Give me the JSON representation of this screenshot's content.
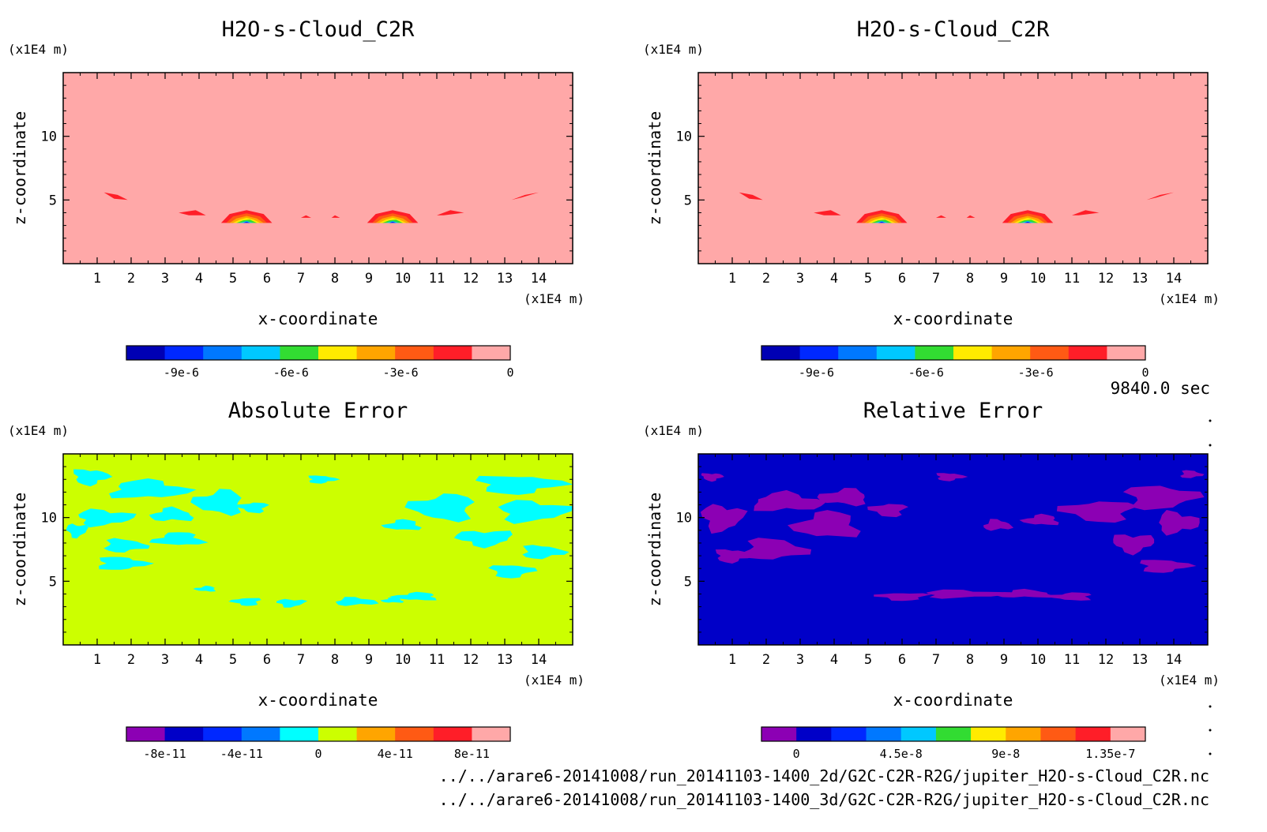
{
  "time_label": "9840.0 sec",
  "file_paths": [
    "../../arare6-20141008/run_20141103-1400_2d/G2C-C2R-R2G/jupiter_H2O-s-Cloud_C2R.nc",
    "../../arare6-20141008/run_20141103-1400_3d/G2C-C2R-R2G/jupiter_H2O-s-Cloud_C2R.nc"
  ],
  "colors": {
    "background_cloud": "#ffa8a8",
    "abs_background": "#ccff00",
    "abs_patch": "#00ffff",
    "rel_background": "#0000c8",
    "rel_patch": "#8c00b4"
  },
  "chart_data": [
    {
      "type": "heatmap",
      "title": "H2O-s-Cloud_C2R",
      "xlabel": "x-coordinate",
      "ylabel": "z-coordinate",
      "xunit": "(x1E4 m)",
      "yunit": "(x1E4 m)",
      "xlim": [
        0,
        15
      ],
      "ylim": [
        0,
        15
      ],
      "xticks": [
        "1",
        "2",
        "3",
        "4",
        "5",
        "6",
        "7",
        "8",
        "9",
        "10",
        "11",
        "12",
        "13",
        "14"
      ],
      "yticks": [
        "5",
        "10"
      ],
      "colorbar": {
        "colors": [
          "#0000b4",
          "#0028ff",
          "#0078ff",
          "#00c8ff",
          "#32dc32",
          "#ffeb00",
          "#ffa500",
          "#ff5a14",
          "#ff1e28",
          "#ffa8a8"
        ],
        "labels": [
          "-9e-6",
          "-6e-6",
          "-3e-6",
          "0"
        ],
        "label_positions": [
          -9e-06,
          -6e-06,
          -3e-06,
          0
        ],
        "range": [
          -1.05e-05,
          0
        ]
      }
    },
    {
      "type": "heatmap",
      "title": "H2O-s-Cloud_C2R",
      "xlabel": "x-coordinate",
      "ylabel": "z-coordinate",
      "xunit": "(x1E4 m)",
      "yunit": "(x1E4 m)",
      "xlim": [
        0,
        15
      ],
      "ylim": [
        0,
        15
      ],
      "xticks": [
        "1",
        "2",
        "3",
        "4",
        "5",
        "6",
        "7",
        "8",
        "9",
        "10",
        "11",
        "12",
        "13",
        "14"
      ],
      "yticks": [
        "5",
        "10"
      ],
      "colorbar": {
        "colors": [
          "#0000b4",
          "#0028ff",
          "#0078ff",
          "#00c8ff",
          "#32dc32",
          "#ffeb00",
          "#ffa500",
          "#ff5a14",
          "#ff1e28",
          "#ffa8a8"
        ],
        "labels": [
          "-9e-6",
          "-6e-6",
          "-3e-6",
          "0"
        ],
        "label_positions": [
          -9e-06,
          -6e-06,
          -3e-06,
          0
        ],
        "range": [
          -1.05e-05,
          0
        ]
      }
    },
    {
      "type": "heatmap",
      "title": "Absolute Error",
      "xlabel": "x-coordinate",
      "ylabel": "z-coordinate",
      "xunit": "(x1E4 m)",
      "yunit": "(x1E4 m)",
      "xlim": [
        0,
        15
      ],
      "ylim": [
        0,
        15
      ],
      "xticks": [
        "1",
        "2",
        "3",
        "4",
        "5",
        "6",
        "7",
        "8",
        "9",
        "10",
        "11",
        "12",
        "13",
        "14"
      ],
      "yticks": [
        "5",
        "10"
      ],
      "colorbar": {
        "colors": [
          "#8c00b4",
          "#0000c8",
          "#0028ff",
          "#0078ff",
          "#00ffff",
          "#ccff00",
          "#ffa500",
          "#ff5a14",
          "#ff1e28",
          "#ffa8a8"
        ],
        "labels": [
          "-8e-11",
          "-4e-11",
          "0",
          "4e-11",
          "8e-11"
        ],
        "label_positions": [
          -8e-11,
          -4e-11,
          0,
          4e-11,
          8e-11
        ],
        "range": [
          -1e-10,
          1e-10
        ]
      }
    },
    {
      "type": "heatmap",
      "title": "Relative Error",
      "xlabel": "x-coordinate",
      "ylabel": "z-coordinate",
      "xunit": "(x1E4 m)",
      "yunit": "(x1E4 m)",
      "xlim": [
        0,
        15
      ],
      "ylim": [
        0,
        15
      ],
      "xticks": [
        "1",
        "2",
        "3",
        "4",
        "5",
        "6",
        "7",
        "8",
        "9",
        "10",
        "11",
        "12",
        "13",
        "14"
      ],
      "yticks": [
        "5",
        "10"
      ],
      "colorbar": {
        "colors": [
          "#8c00b4",
          "#0000c8",
          "#0028ff",
          "#0078ff",
          "#00c8ff",
          "#32dc32",
          "#ffeb00",
          "#ffa500",
          "#ff5a14",
          "#ff1e28",
          "#ffa8a8"
        ],
        "labels": [
          "0",
          "4.5e-8",
          "9e-8",
          "1.35e-7"
        ],
        "label_positions": [
          0,
          4.5e-08,
          9e-08,
          1.35e-07
        ],
        "range": [
          -1.5e-08,
          1.5e-07
        ]
      }
    }
  ]
}
